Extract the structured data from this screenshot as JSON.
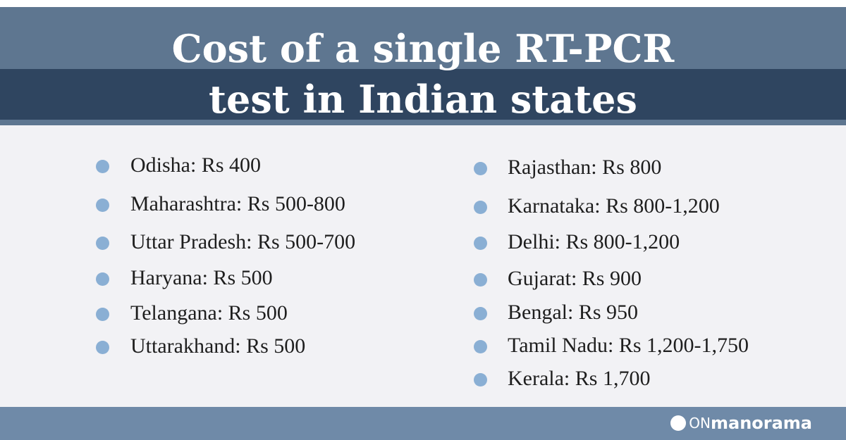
{
  "header": {
    "title_lines": [
      "Cost of a single RT-PCR",
      "test in Indian states"
    ]
  },
  "left_items": [
    "Odisha: Rs 400",
    "Maharashtra: Rs 500-800",
    "Uttar Pradesh: Rs 500-700",
    "Haryana: Rs 500",
    "Telangana: Rs 500",
    "Uttarakhand: Rs 500"
  ],
  "right_items": [
    "Rajasthan: Rs 800",
    "Karnataka: Rs 800-1,200",
    "Delhi: Rs 800-1,200",
    "Gujarat: Rs 900",
    "Bengal: Rs 950",
    "Tamil Nadu: Rs 1,200-1,750",
    "Kerala: Rs 1,700"
  ],
  "footer": {
    "brand_prefix": "ON",
    "brand_name": "manorama"
  }
}
